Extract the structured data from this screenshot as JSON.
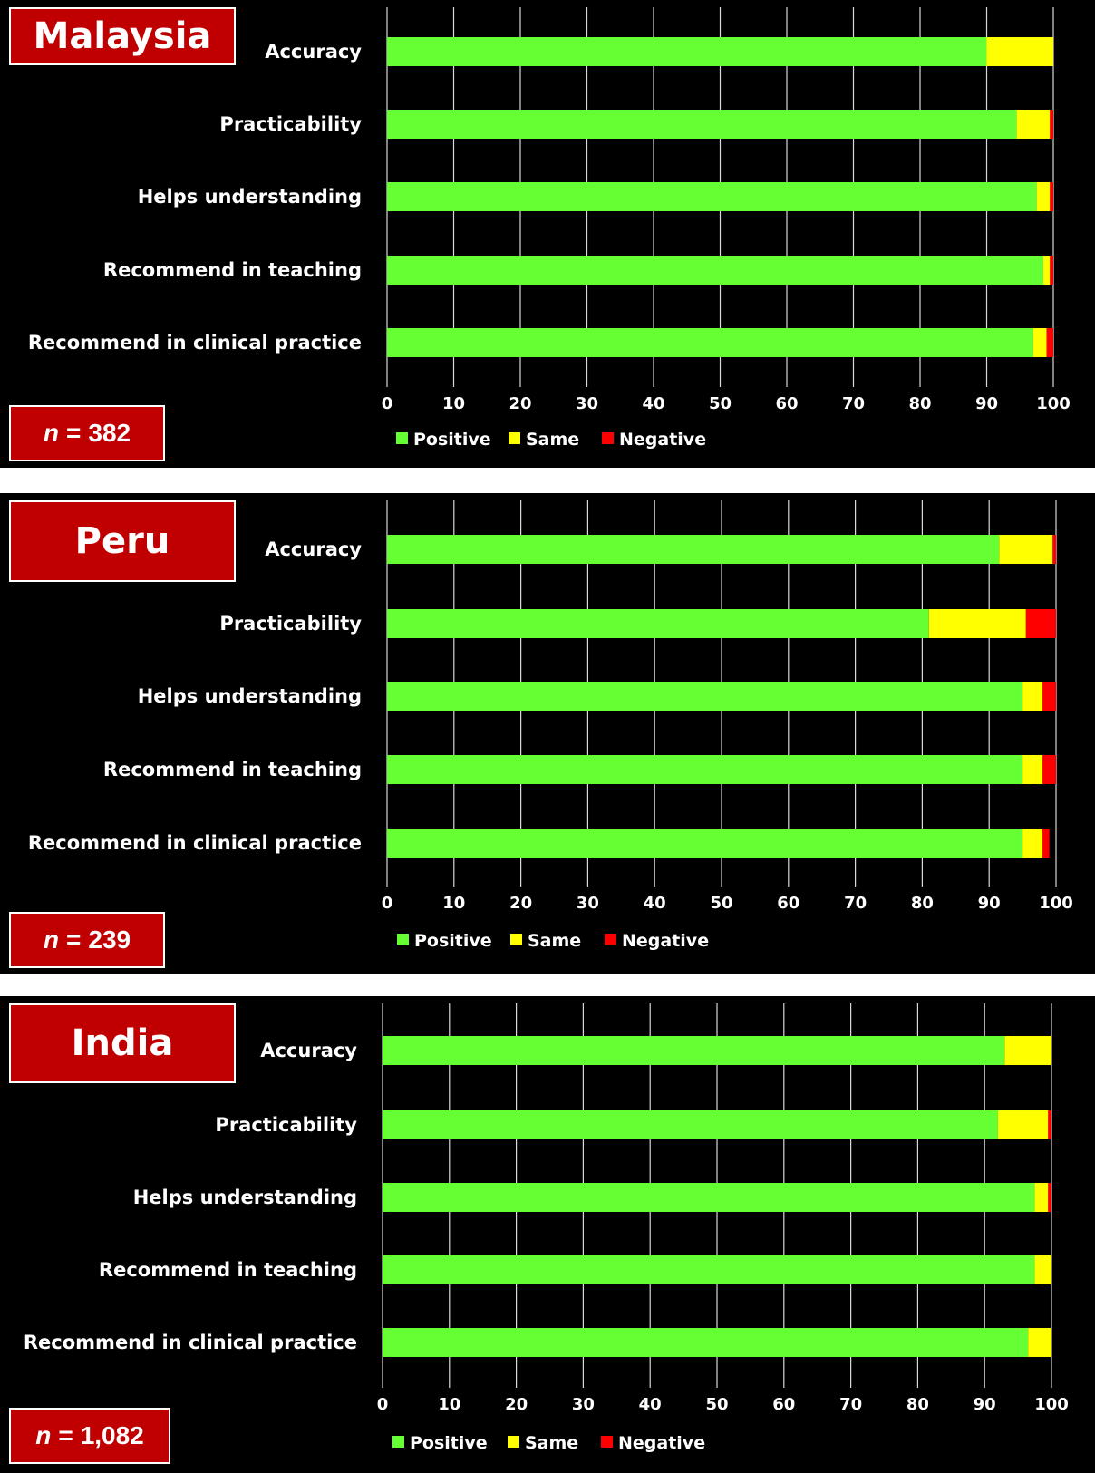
{
  "chart_data": [
    {
      "type": "bar",
      "orientation": "horizontal",
      "stacked": true,
      "title": "Malaysia",
      "sample_size": "382",
      "sample_label": "n",
      "categories": [
        "Accuracy",
        "Practicability",
        "Helps understanding",
        "Recommend in teaching",
        "Recommend in clinical practice"
      ],
      "series": [
        {
          "name": "Positive",
          "color": "#66ff33",
          "values": [
            90,
            94.5,
            97.5,
            98.5,
            97
          ]
        },
        {
          "name": "Same",
          "color": "#ffff00",
          "values": [
            10,
            5,
            2,
            1,
            2
          ]
        },
        {
          "name": "Negative",
          "color": "#ff0000",
          "values": [
            0,
            0.5,
            0.5,
            0.5,
            1
          ]
        }
      ],
      "xlim": [
        0,
        100
      ],
      "xticks": [
        "0",
        "10",
        "20",
        "30",
        "40",
        "50",
        "60",
        "70",
        "80",
        "90",
        "100"
      ],
      "grid": "vertical",
      "legend": "bottom"
    },
    {
      "type": "bar",
      "orientation": "horizontal",
      "stacked": true,
      "title": "Peru",
      "sample_size": "239",
      "sample_label": "n",
      "categories": [
        "Accuracy",
        "Practicability",
        "Helps understanding",
        "Recommend in teaching",
        "Recommend in clinical practice"
      ],
      "series": [
        {
          "name": "Positive",
          "color": "#66ff33",
          "values": [
            91.5,
            81,
            95,
            95,
            95
          ]
        },
        {
          "name": "Same",
          "color": "#ffff00",
          "values": [
            8,
            14.5,
            3,
            3,
            3
          ]
        },
        {
          "name": "Negative",
          "color": "#ff0000",
          "values": [
            0.5,
            4.5,
            2,
            2,
            1
          ]
        }
      ],
      "xlim": [
        0,
        100
      ],
      "xticks": [
        "0",
        "10",
        "20",
        "30",
        "40",
        "50",
        "60",
        "70",
        "80",
        "90",
        "100"
      ],
      "grid": "vertical",
      "legend": "bottom"
    },
    {
      "type": "bar",
      "orientation": "horizontal",
      "stacked": true,
      "title": "India",
      "sample_size": "1,082",
      "sample_label": "n",
      "categories": [
        "Accuracy",
        "Practicability",
        "Helps understanding",
        "Recommend in teaching",
        "Recommend in clinical practice"
      ],
      "series": [
        {
          "name": "Positive",
          "color": "#66ff33",
          "values": [
            93,
            92,
            97.5,
            97.5,
            96.5
          ]
        },
        {
          "name": "Same",
          "color": "#ffff00",
          "values": [
            7,
            7.5,
            2,
            2.5,
            3.5
          ]
        },
        {
          "name": "Negative",
          "color": "#ff0000",
          "values": [
            0,
            0.5,
            0.5,
            0,
            0
          ]
        }
      ],
      "xlim": [
        0,
        100
      ],
      "xticks": [
        "0",
        "10",
        "20",
        "30",
        "40",
        "50",
        "60",
        "70",
        "80",
        "90",
        "100"
      ],
      "grid": "vertical",
      "legend": "bottom"
    }
  ],
  "ui": {
    "equals_sign": "="
  }
}
